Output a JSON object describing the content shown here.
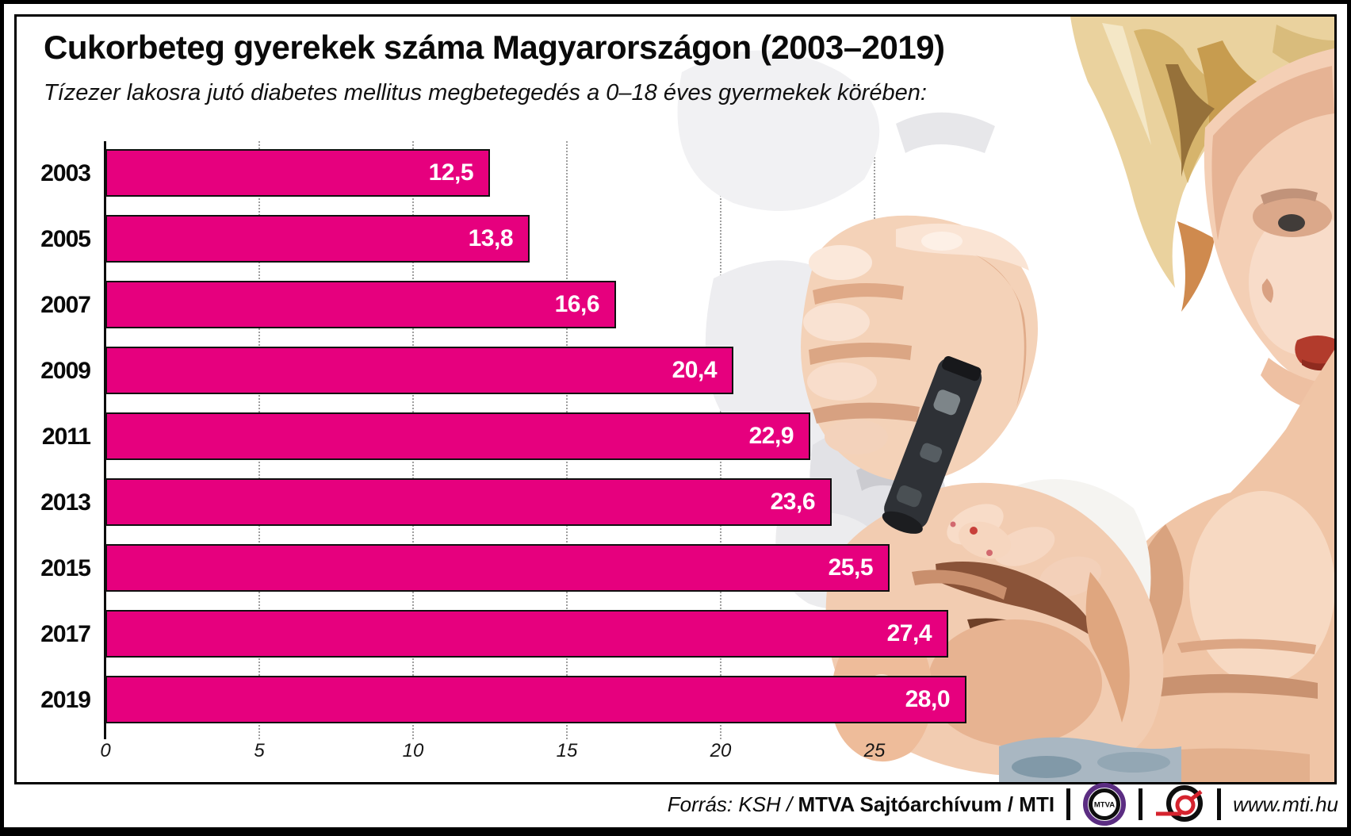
{
  "title": "Cukorbeteg gyerekek száma Magyarországon (2003–2019)",
  "subtitle": "Tízezer lakosra jutó diabetes mellitus megbetegedés a 0–18 éves gyermekek körében:",
  "chart_data": {
    "type": "bar",
    "orientation": "horizontal",
    "title": "Cukorbeteg gyerekek száma Magyarországon (2003–2019)",
    "subtitle": "Tízezer lakosra jutó diabetes mellitus megbetegedés a 0–18 éves gyermekek körében:",
    "categories": [
      "2003",
      "2005",
      "2007",
      "2009",
      "2011",
      "2013",
      "2015",
      "2017",
      "2019"
    ],
    "values": [
      12.5,
      13.8,
      16.6,
      20.4,
      22.9,
      23.6,
      25.5,
      27.4,
      28.0
    ],
    "value_labels": [
      "12,5",
      "13,8",
      "16,6",
      "20,4",
      "22,9",
      "23,6",
      "25,5",
      "27,4",
      "28,0"
    ],
    "x_ticks": [
      0,
      5,
      10,
      15,
      20,
      25
    ],
    "x_tick_labels": [
      "0",
      "5",
      "10",
      "15",
      "20",
      "25"
    ],
    "xlim": [
      0,
      28.6
    ],
    "grid": "vertical-dotted",
    "legend": "none",
    "bar_color": "#e6007e",
    "bar_border_color": "#101010",
    "value_label_color": "#ffffff"
  },
  "footer": {
    "source_prefix_italic": "Forrás: KSH / ",
    "source_bold": "MTVA Sajtóarchívum",
    "source_suffix": " / MTI",
    "mtva_logo_text": "MTVA",
    "website": "www.mti.hu",
    "mtva_purple": "#5b2d82",
    "mti_red": "#d5232e"
  },
  "illustration": {
    "name": "child-finger-prick-with-lancet-device",
    "description_colors": [
      "#f4d2b8",
      "#e6b394",
      "#2e3136",
      "#ead29e",
      "#a9b7c2"
    ]
  }
}
